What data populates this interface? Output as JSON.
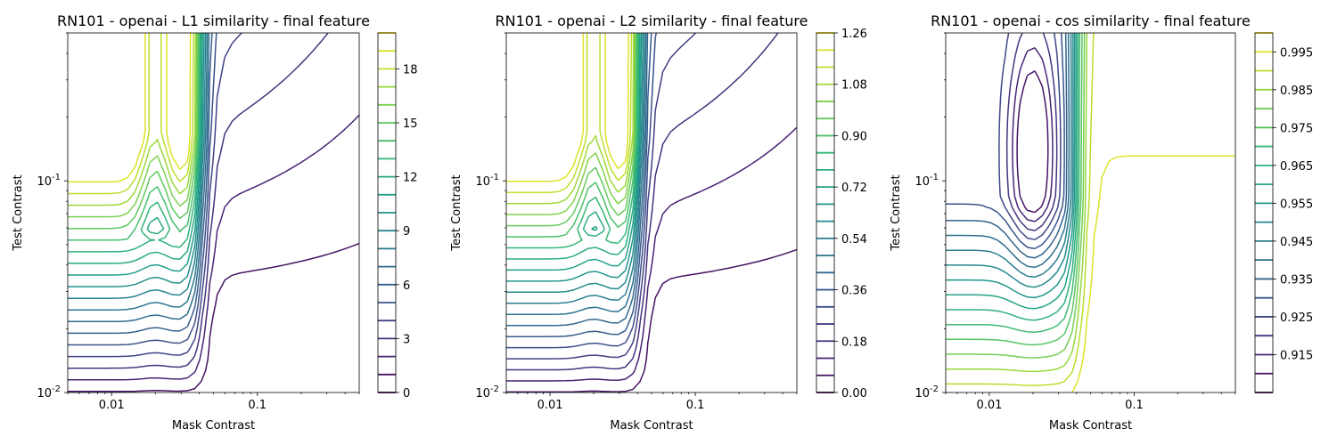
{
  "chart_data": [
    {
      "type": "contour",
      "title": "RN101 - openai - L1 similarity - final feature",
      "xlabel": "Mask Contrast",
      "ylabel": "Test Contrast",
      "xscale": "log",
      "yscale": "log",
      "xlim": [
        0.005,
        0.5
      ],
      "ylim": [
        0.01,
        0.5
      ],
      "xticks": [
        {
          "value": 0.01,
          "label": "0.01"
        },
        {
          "value": 0.1,
          "label": "0.1"
        }
      ],
      "yticks": [
        {
          "value": 0.01,
          "label": "10^-2"
        },
        {
          "value": 0.1,
          "label": "10^-1"
        }
      ],
      "colorbar": {
        "min": 0,
        "max": 20.0,
        "levels": [
          0,
          1,
          2,
          3,
          4,
          5,
          6,
          7,
          8,
          9,
          10,
          11,
          12,
          13,
          14,
          15,
          16,
          17,
          18,
          19,
          20
        ],
        "ticks": [
          0,
          3,
          6,
          9,
          12,
          15,
          18
        ],
        "ticklabels": [
          "0",
          "3",
          "6",
          "9",
          "12",
          "15",
          "18"
        ]
      },
      "colormap": "viridis",
      "field": {
        "vmin": 0,
        "vmax": 20.0,
        "valley": false
      }
    },
    {
      "type": "contour",
      "title": "RN101 - openai - L2 similarity - final feature",
      "xlabel": "Mask Contrast",
      "ylabel": "Test Contrast",
      "xscale": "log",
      "yscale": "log",
      "xlim": [
        0.005,
        0.5
      ],
      "ylim": [
        0.01,
        0.5
      ],
      "xticks": [
        {
          "value": 0.01,
          "label": "0.01"
        },
        {
          "value": 0.1,
          "label": "0.1"
        }
      ],
      "yticks": [
        {
          "value": 0.01,
          "label": "10^-2"
        },
        {
          "value": 0.1,
          "label": "10^-1"
        }
      ],
      "colorbar": {
        "min": 0,
        "max": 1.26,
        "levels": [
          0,
          0.06,
          0.12,
          0.18,
          0.24,
          0.3,
          0.36,
          0.42,
          0.48,
          0.54,
          0.6,
          0.66,
          0.72,
          0.78,
          0.84,
          0.9,
          0.96,
          1.02,
          1.08,
          1.14,
          1.2,
          1.26
        ],
        "ticks": [
          0,
          0.18,
          0.36,
          0.54,
          0.72,
          0.9,
          1.08,
          1.26
        ],
        "ticklabels": [
          "0.00",
          "0.18",
          "0.36",
          "0.54",
          "0.72",
          "0.90",
          "1.08",
          "1.26"
        ]
      },
      "colormap": "viridis",
      "field": {
        "vmin": 0,
        "vmax": 1.26,
        "valley": false
      }
    },
    {
      "type": "contour",
      "title": "RN101 - openai - cos similarity - final feature",
      "xlabel": "Mask Contrast",
      "ylabel": "Test Contrast",
      "xscale": "log",
      "yscale": "log",
      "xlim": [
        0.005,
        0.5
      ],
      "ylim": [
        0.01,
        0.5
      ],
      "xticks": [
        {
          "value": 0.01,
          "label": "0.01"
        },
        {
          "value": 0.1,
          "label": "0.1"
        }
      ],
      "yticks": [
        {
          "value": 0.01,
          "label": "10^-2"
        },
        {
          "value": 0.1,
          "label": "10^-1"
        }
      ],
      "colorbar": {
        "min": 0.905,
        "max": 1.0,
        "levels": [
          0.905,
          0.91,
          0.915,
          0.92,
          0.925,
          0.93,
          0.935,
          0.94,
          0.945,
          0.95,
          0.955,
          0.96,
          0.965,
          0.97,
          0.975,
          0.98,
          0.985,
          0.99,
          0.995,
          1.0
        ],
        "ticks": [
          0.915,
          0.925,
          0.935,
          0.945,
          0.955,
          0.965,
          0.975,
          0.985,
          0.995
        ],
        "ticklabels": [
          "0.915",
          "0.925",
          "0.935",
          "0.945",
          "0.955",
          "0.965",
          "0.975",
          "0.985",
          "0.995"
        ]
      },
      "colormap": "viridis",
      "field": {
        "vmin": 0.905,
        "vmax": 1.0,
        "valley": true
      }
    }
  ]
}
